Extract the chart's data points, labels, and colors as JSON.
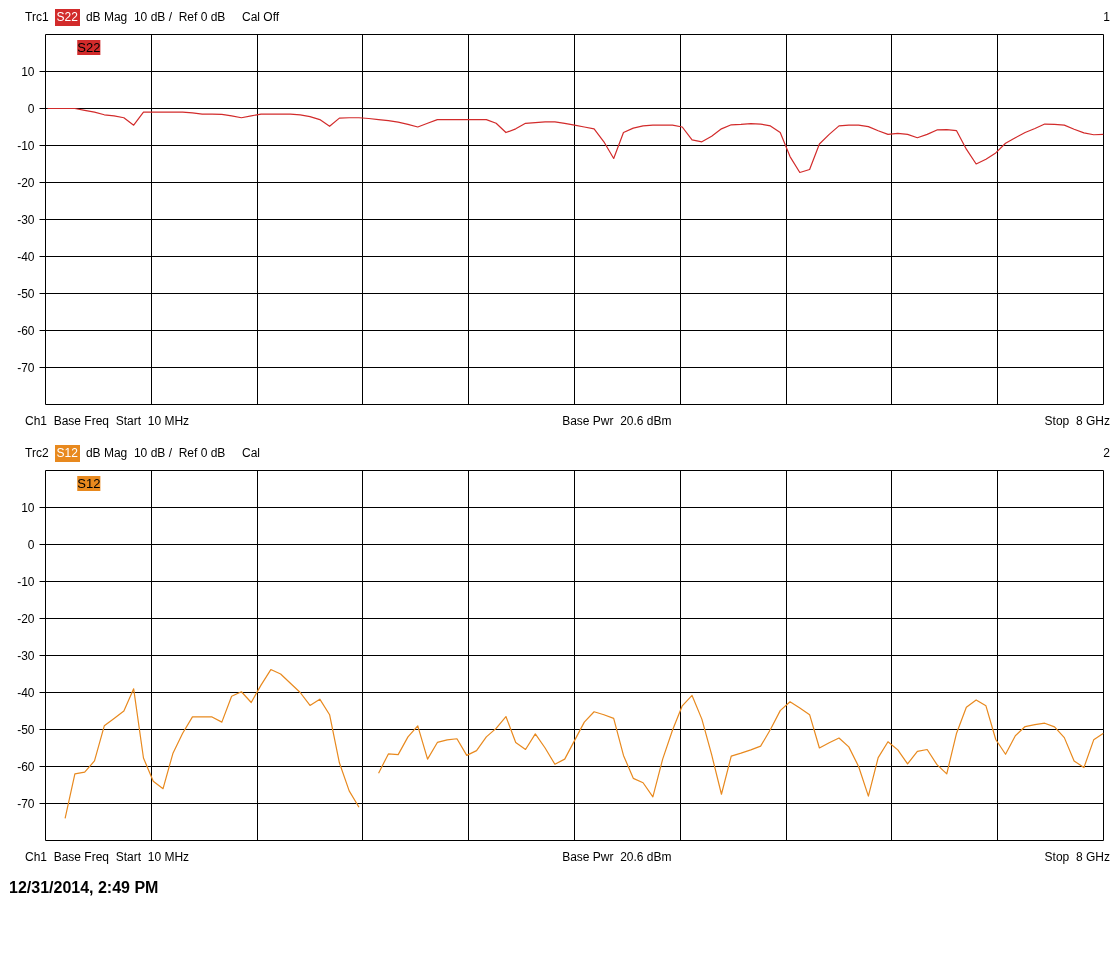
{
  "chart_data": [
    {
      "type": "line",
      "title": "Trc1",
      "subtitle": "dB Mag  10 dB /  Ref 0 dB     Cal Off",
      "annotations": [
        "1",
        "Ch1  Base Freq  Start  10 MHz",
        "Base Pwr  20.6 dBm",
        "Stop  8 GHz"
      ],
      "categories": [
        null,
        null,
        null,
        null,
        null,
        null,
        null,
        null,
        null,
        null,
        null,
        null,
        null,
        null,
        null,
        null,
        null,
        null,
        null,
        null,
        null,
        null,
        null,
        null,
        null,
        null,
        null,
        null,
        null,
        null,
        null,
        null,
        null,
        null,
        null,
        null,
        null,
        null,
        null,
        null,
        null,
        null,
        null,
        null,
        null,
        null,
        null,
        null,
        null,
        null,
        null,
        null,
        null,
        null,
        null,
        null,
        null,
        null,
        null,
        null,
        null,
        null,
        null,
        null,
        null,
        null,
        null,
        null,
        null,
        null,
        null,
        null,
        null,
        null,
        null,
        null,
        null,
        null,
        null,
        null,
        null,
        null,
        null,
        null,
        null,
        null,
        null,
        null,
        null,
        null,
        null,
        null,
        null,
        null,
        null,
        null,
        null,
        null,
        null,
        null,
        null,
        null,
        null,
        null,
        null,
        null,
        null,
        null,
        null
      ],
      "series": [
        {
          "name": "S22",
          "color": "#d22b2b",
          "values": [
            0,
            0,
            0,
            0,
            -0.5,
            -1,
            -1.7,
            -2,
            -2.5,
            -4.5,
            -1,
            -1,
            -1,
            -1,
            -1,
            -1.2,
            -1.5,
            -1.5,
            -1.6,
            -2,
            -2.5,
            -2,
            -1.5,
            -1.5,
            -1.5,
            -1.5,
            -1.7,
            -2.2,
            -3,
            -4.8,
            -2.6,
            -2.5,
            -2.5,
            -2.7,
            -3,
            -3.3,
            -3.7,
            -4.3,
            -5,
            -4,
            -3,
            -3,
            -3,
            -3,
            -3,
            -3,
            -4,
            -6.5,
            -5.5,
            -4,
            -3.8,
            -3.6,
            -3.6,
            -4,
            -4.5,
            -5,
            -5.5,
            -9,
            -13.5,
            -6.5,
            -5.3,
            -4.7,
            -4.5,
            -4.5,
            -4.5,
            -5,
            -8.5,
            -9,
            -7.5,
            -5.5,
            -4.4,
            -4.3,
            -4.1,
            -4.2,
            -4.7,
            -6.5,
            -13,
            -17.3,
            -16.5,
            -9.6,
            -7,
            -4.7,
            -4.5,
            -4.5,
            -4.9,
            -6,
            -7,
            -6.7,
            -7,
            -7.9,
            -7,
            -5.8,
            -5.7,
            -6,
            -11,
            -15,
            -13.7,
            -12,
            -9.4,
            -7.9,
            -6.5,
            -5.4,
            -4.2,
            -4.3,
            -4.5,
            -5.6,
            -6.6,
            -7.1,
            -7
          ]
        }
      ],
      "ylim": [
        -80,
        20
      ],
      "yticks": [
        10,
        0,
        -10,
        -20,
        -30,
        -40,
        -50,
        -60,
        -70
      ],
      "grid": true,
      "legend": "top left",
      "tick_labels": "y"
    },
    {
      "type": "line",
      "title": "Trc2",
      "subtitle": "dB Mag  10 dB /  Ref 0 dB     Cal",
      "annotations": [
        "2",
        "Ch1  Base Freq  Start  10 MHz",
        "Base Pwr  20.6 dBm",
        "Stop  8 GHz",
        "12/31/2014, 2:49 PM"
      ],
      "categories": [
        null,
        null,
        null,
        null,
        null,
        null,
        null,
        null,
        null,
        null,
        null,
        null,
        null,
        null,
        null,
        null,
        null,
        null,
        null,
        null,
        null,
        null,
        null,
        null,
        null,
        null,
        null,
        null,
        null,
        null,
        null,
        null,
        null,
        null,
        null,
        null,
        null,
        null,
        null,
        null,
        null,
        null,
        null,
        null,
        null,
        null,
        null,
        null,
        null,
        null,
        null,
        null,
        null,
        null,
        null,
        null,
        null,
        null,
        null,
        null,
        null,
        null,
        null,
        null,
        null,
        null,
        null,
        null,
        null,
        null,
        null,
        null,
        null,
        null,
        null,
        null,
        null,
        null,
        null,
        null,
        null,
        null,
        null,
        null,
        null,
        null,
        null,
        null,
        null,
        null,
        null,
        null,
        null,
        null,
        null,
        null,
        null,
        null,
        null,
        null,
        null,
        null,
        null,
        null,
        null,
        null,
        null,
        null,
        null
      ],
      "series": [
        {
          "name": "S12",
          "color": "#e8891e",
          "values": [
            null,
            null,
            -74,
            -62,
            -61.5,
            -58.5,
            -49,
            -47,
            -45,
            -39,
            -57.7,
            -64,
            -66,
            -56.5,
            -51,
            -46.6,
            -46.6,
            -46.6,
            -48,
            -41,
            -39.8,
            -42.7,
            -38,
            -33.8,
            -35,
            -37.5,
            -40,
            -43.5,
            -41.8,
            -46,
            -59,
            -66.6,
            -71,
            null,
            -61.8,
            -56.6,
            -56.8,
            -52,
            -49,
            -58,
            -53.5,
            -52.8,
            -52.5,
            -57,
            -55.7,
            -52,
            -49.7,
            -46.5,
            -53.5,
            -55.4,
            -51.2,
            -55,
            -59.4,
            -58,
            -53,
            -48,
            -45.2,
            -46,
            -47,
            -57,
            -63.2,
            -64.4,
            -68.2,
            -58,
            -50.2,
            -43.6,
            -40.8,
            -47.2,
            -56.8,
            -67.5,
            -57.2,
            -56.4,
            -55.5,
            -54.5,
            -50,
            -44.9,
            -42.5,
            -44.2,
            -46,
            -55,
            -53.6,
            -52.3,
            -54.7,
            -60,
            -68,
            -57.6,
            -53.3,
            -55.5,
            -59.3,
            -55.9,
            -55.4,
            -59.5,
            -62,
            -51,
            -44,
            -42,
            -43.6,
            -52.7,
            -56.7,
            -51.7,
            -49.2,
            -48.7,
            -48.3,
            -49.3,
            -52.2,
            -58.5,
            -60.3,
            -52.8,
            -51
          ]
        }
      ],
      "ylim": [
        -80,
        20
      ],
      "yticks": [
        10,
        0,
        -10,
        -20,
        -30,
        -40,
        -50,
        -60,
        -70
      ],
      "grid": true,
      "legend": "top left",
      "tick_labels": "y"
    }
  ]
}
